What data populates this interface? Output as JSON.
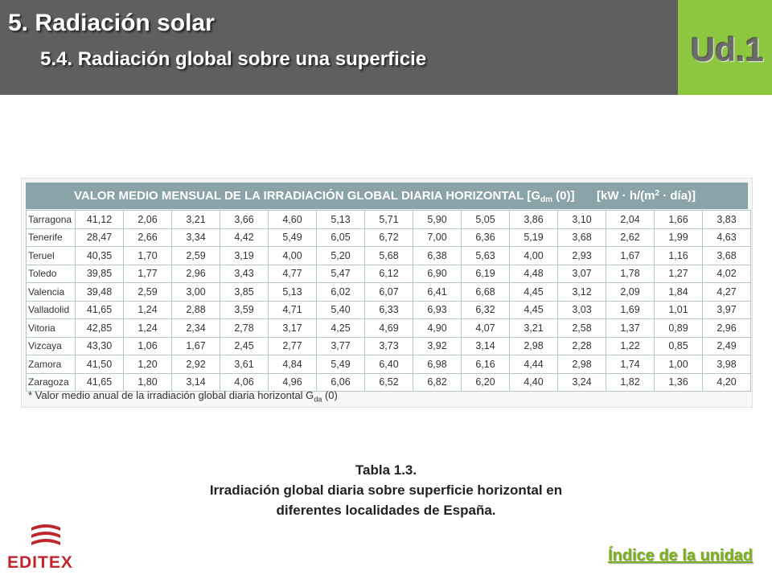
{
  "header": {
    "title": "5. Radiación solar",
    "subtitle": "5.4. Radiación global sobre una superficie",
    "unit_badge": "Ud.1"
  },
  "table": {
    "title_main": "VALOR MEDIO MENSUAL DE LA IRRADIACIÓN GLOBAL DIARIA HORIZONTAL [G",
    "title_sub": "dm",
    "title_tail": " (0)]",
    "units_a": "[kW · h/(m",
    "units_sup": "2",
    "units_b": " · día)]",
    "rows": [
      {
        "city": "Tarragona",
        "values": [
          "41,12",
          "2,06",
          "3,21",
          "3,66",
          "4,60",
          "5,13",
          "5,71",
          "5,90",
          "5,05",
          "3,86",
          "3,10",
          "2,04",
          "1,66",
          "3,83"
        ]
      },
      {
        "city": "Tenerife",
        "values": [
          "28,47",
          "2,66",
          "3,34",
          "4,42",
          "5,49",
          "6,05",
          "6,72",
          "7,00",
          "6,36",
          "5,19",
          "3,68",
          "2,62",
          "1,99",
          "4,63"
        ]
      },
      {
        "city": "Teruel",
        "values": [
          "40,35",
          "1,70",
          "2,59",
          "3,19",
          "4,00",
          "5,20",
          "5,68",
          "6,38",
          "5,63",
          "4,00",
          "2,93",
          "1,67",
          "1,16",
          "3,68"
        ]
      },
      {
        "city": "Toledo",
        "values": [
          "39,85",
          "1,77",
          "2,96",
          "3,43",
          "4,77",
          "5,47",
          "6,12",
          "6,90",
          "6,19",
          "4,48",
          "3,07",
          "1,78",
          "1,27",
          "4,02"
        ]
      },
      {
        "city": "Valencia",
        "values": [
          "39,48",
          "2,59",
          "3,00",
          "3,85",
          "5,13",
          "6,02",
          "6,07",
          "6,41",
          "6,68",
          "4,45",
          "3,12",
          "2,09",
          "1,84",
          "4,27"
        ]
      },
      {
        "city": "Valladolid",
        "values": [
          "41,65",
          "1,24",
          "2,88",
          "3,59",
          "4,71",
          "5,40",
          "6,33",
          "6,93",
          "6,32",
          "4,45",
          "3,03",
          "1,69",
          "1,01",
          "3,97"
        ]
      },
      {
        "city": "Vitoria",
        "values": [
          "42,85",
          "1,24",
          "2,34",
          "2,78",
          "3,17",
          "4,25",
          "4,69",
          "4,90",
          "4,07",
          "3,21",
          "2,58",
          "1,37",
          "0,89",
          "2,96"
        ]
      },
      {
        "city": "Vizcaya",
        "values": [
          "43,30",
          "1,06",
          "1,67",
          "2,45",
          "2,77",
          "3,77",
          "3,73",
          "3,92",
          "3,14",
          "2,98",
          "2,28",
          "1,22",
          "0,85",
          "2,49"
        ]
      },
      {
        "city": "Zamora",
        "values": [
          "41,50",
          "1,20",
          "2,92",
          "3,61",
          "4,84",
          "5,49",
          "6,40",
          "6,98",
          "6,16",
          "4,44",
          "2,98",
          "1,74",
          "1,00",
          "3,98"
        ]
      },
      {
        "city": "Zaragoza",
        "values": [
          "41,65",
          "1,80",
          "3,14",
          "4,06",
          "4,96",
          "6,06",
          "6,52",
          "6,82",
          "6,20",
          "4,40",
          "3,24",
          "1,82",
          "1,36",
          "4,20"
        ]
      }
    ],
    "footnote_main": "* Valor medio anual de la irradiación global diaria horizontal G",
    "footnote_sub": "da",
    "footnote_tail": " (0)"
  },
  "caption": {
    "line1": "Tabla 1.3.",
    "line2": "Irradiación global diaria sobre superficie horizontal en",
    "line3": "diferentes localidades de España."
  },
  "footer": {
    "logo_text": "EDITEX",
    "index_link": "Índice de la unidad"
  },
  "colors": {
    "header_bg": "#5f5f5f",
    "badge_bg": "#8dc63f",
    "table_head_bg": "#8aa3a8",
    "logo_red": "#c0272d",
    "link_green": "#7ab317"
  }
}
